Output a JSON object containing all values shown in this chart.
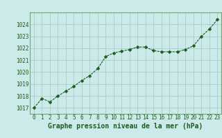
{
  "x": [
    0,
    1,
    2,
    3,
    4,
    5,
    6,
    7,
    8,
    9,
    10,
    11,
    12,
    13,
    14,
    15,
    16,
    17,
    18,
    19,
    20,
    21,
    22,
    23
  ],
  "y": [
    1017.0,
    1017.8,
    1017.5,
    1018.0,
    1018.4,
    1018.8,
    1019.3,
    1019.7,
    1020.3,
    1021.3,
    1021.6,
    1021.75,
    1021.9,
    1022.1,
    1022.1,
    1021.8,
    1021.7,
    1021.7,
    1021.7,
    1021.9,
    1022.2,
    1023.0,
    1023.6,
    1024.4
  ],
  "line_color": "#1a5c1a",
  "marker": "D",
  "marker_size": 2.5,
  "bg_color": "#cceaea",
  "grid_color": "#aacccc",
  "xlabel": "Graphe pression niveau de la mer (hPa)",
  "ylim": [
    1016.5,
    1025.0
  ],
  "xlim": [
    -0.5,
    23.5
  ],
  "yticks": [
    1017,
    1018,
    1019,
    1020,
    1021,
    1022,
    1023,
    1024
  ],
  "xticks": [
    0,
    1,
    2,
    3,
    4,
    5,
    6,
    7,
    8,
    9,
    10,
    11,
    12,
    13,
    14,
    15,
    16,
    17,
    18,
    19,
    20,
    21,
    22,
    23
  ],
  "tick_fontsize": 5.5,
  "xlabel_fontsize": 7.0,
  "spine_color": "#6aaa6a"
}
